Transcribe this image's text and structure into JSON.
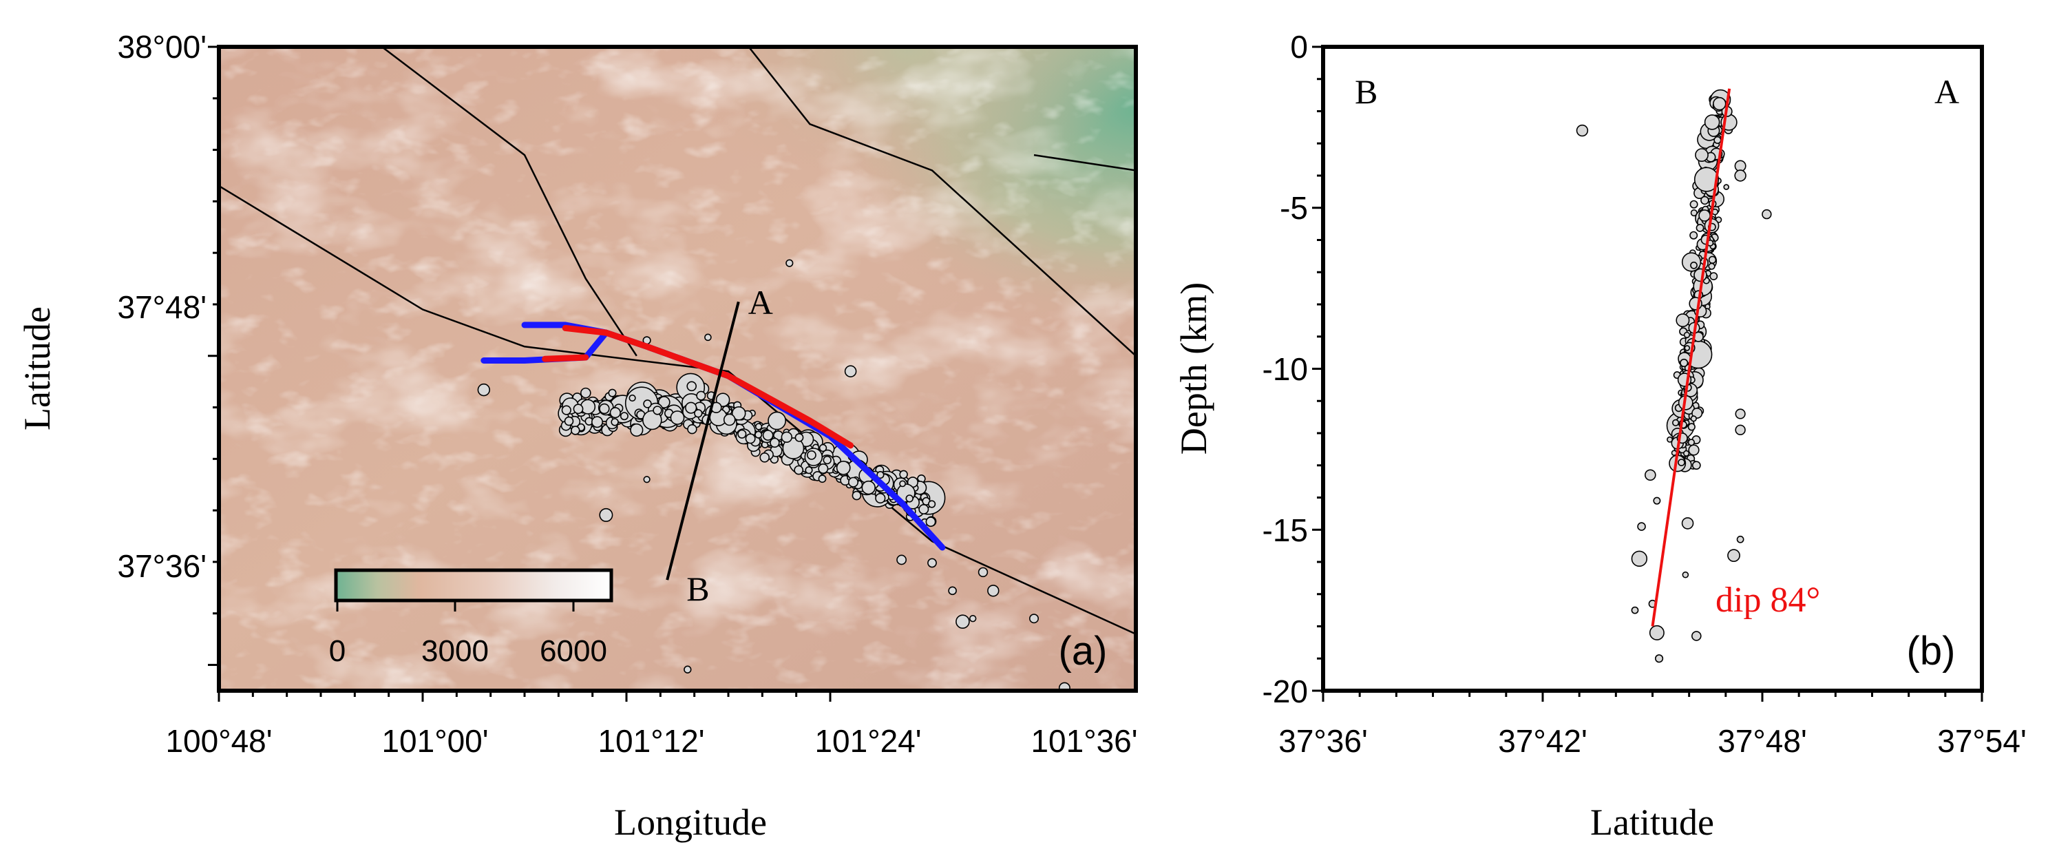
{
  "panel_a": {
    "label": "(a)",
    "xlabel": "Longitude",
    "ylabel": "Latitude",
    "x_ticks": [
      "100°48'",
      "101°00'",
      "101°12'",
      "101°24'",
      "101°36'"
    ],
    "y_ticks": [
      "38°00'",
      "37°48'",
      "37°36'"
    ],
    "profile_labels": {
      "a": "A",
      "b": "B"
    },
    "colorbar": {
      "ticks": [
        "0",
        "3000",
        "6000"
      ]
    },
    "colors": {
      "rupture_blue": "#1a1aff",
      "rupture_red": "#ee1111",
      "terrain_low": "#7fb89a",
      "terrain_mid": "#d8ab96",
      "terrain_high": "#ffffff"
    }
  },
  "panel_b": {
    "label": "(b)",
    "xlabel": "Latitude",
    "ylabel": "Depth (km)",
    "x_ticks": [
      "37°36'",
      "37°42'",
      "37°48'",
      "37°54'"
    ],
    "y_ticks": [
      "0",
      "-5",
      "-10",
      "-15",
      "-20"
    ],
    "corner_left": "B",
    "corner_right": "A",
    "dip_label": "dip 84°",
    "colors": {
      "fit_line": "#ee1111"
    }
  },
  "chart_data": [
    {
      "type": "scatter",
      "panel": "(a)",
      "title": "",
      "xlabel": "Longitude",
      "ylabel": "Latitude",
      "xlim_deg": [
        100.8,
        101.7
      ],
      "ylim_deg": [
        37.5833,
        38.0
      ],
      "grid": false,
      "faults": [
        {
          "points": [
            [
              100.8,
              37.91
            ],
            [
              101.0,
              37.83
            ],
            [
              101.1,
              37.806
            ],
            [
              101.3,
              37.79
            ],
            [
              101.5,
              37.68
            ],
            [
              101.7,
              37.62
            ]
          ]
        },
        {
          "points": [
            [
              100.96,
              38.0
            ],
            [
              101.1,
              37.93
            ],
            [
              101.16,
              37.85
            ],
            [
              101.21,
              37.8
            ]
          ]
        },
        {
          "points": [
            [
              101.32,
              38.0
            ],
            [
              101.38,
              37.95
            ],
            [
              101.5,
              37.92
            ],
            [
              101.6,
              37.86
            ],
            [
              101.7,
              37.8
            ]
          ]
        },
        {
          "points": [
            [
              101.6,
              37.93
            ],
            [
              101.7,
              37.92
            ]
          ]
        }
      ],
      "rupture_blue": [
        {
          "points": [
            [
              101.06,
              37.797
            ],
            [
              101.1,
              37.797
            ],
            [
              101.16,
              37.799
            ]
          ]
        },
        {
          "points": [
            [
              101.1,
              37.82
            ],
            [
              101.14,
              37.82
            ],
            [
              101.18,
              37.815
            ],
            [
              101.22,
              37.806
            ],
            [
              101.3,
              37.787
            ],
            [
              101.4,
              37.748
            ],
            [
              101.47,
              37.705
            ],
            [
              101.51,
              37.676
            ]
          ]
        },
        {
          "points": [
            [
              101.16,
              37.799
            ],
            [
              101.18,
              37.815
            ]
          ]
        }
      ],
      "rupture_red": [
        {
          "points": [
            [
              101.12,
              37.798
            ],
            [
              101.16,
              37.799
            ]
          ]
        },
        {
          "points": [
            [
              101.14,
              37.818
            ],
            [
              101.18,
              37.815
            ],
            [
              101.22,
              37.806
            ],
            [
              101.3,
              37.787
            ],
            [
              101.38,
              37.758
            ],
            [
              101.42,
              37.742
            ]
          ]
        }
      ],
      "profile": {
        "A": [
          101.31,
          37.835
        ],
        "B": [
          101.24,
          37.655
        ]
      },
      "colorbar_range_m": [
        0,
        7000
      ],
      "epicenter_cluster": {
        "lon_range": [
          101.14,
          101.5
        ],
        "lat_range": [
          37.7,
          37.79
        ],
        "count": 520
      },
      "outliers": [
        [
          101.22,
          37.81
        ],
        [
          101.28,
          37.812
        ],
        [
          101.36,
          37.86
        ],
        [
          101.21,
          37.752
        ],
        [
          101.22,
          37.72
        ],
        [
          101.18,
          37.697
        ],
        [
          101.25,
          37.76
        ],
        [
          101.5,
          37.666
        ],
        [
          101.52,
          37.648
        ],
        [
          101.55,
          37.66
        ],
        [
          101.56,
          37.648
        ],
        [
          101.6,
          37.63
        ],
        [
          101.47,
          37.668
        ],
        [
          101.53,
          37.628
        ],
        [
          101.54,
          37.63
        ],
        [
          101.26,
          37.597
        ],
        [
          101.63,
          37.585
        ],
        [
          101.06,
          37.778
        ],
        [
          101.16,
          37.776
        ],
        [
          101.42,
          37.79
        ]
      ]
    },
    {
      "type": "scatter",
      "panel": "(b)",
      "title": "",
      "xlabel": "Latitude",
      "ylabel": "Depth (km)",
      "xlim_deg": [
        37.6,
        37.9
      ],
      "ylim": [
        -20,
        0
      ],
      "grid": false,
      "fit_line": {
        "top": [
          37.785,
          -1.3
        ],
        "bottom": [
          37.75,
          -18.0
        ]
      },
      "dip_deg": 84,
      "hypocenter_cluster": {
        "lat_range": [
          37.755,
          37.785
        ],
        "depth_range": [
          -13,
          -1.5
        ],
        "count": 300
      },
      "outliers": [
        [
          37.718,
          -2.6
        ],
        [
          37.802,
          -5.2
        ],
        [
          37.79,
          -3.7
        ],
        [
          37.79,
          -4.0
        ],
        [
          37.79,
          -11.9
        ],
        [
          37.79,
          -11.4
        ],
        [
          37.745,
          -14.9
        ],
        [
          37.744,
          -15.9
        ],
        [
          37.787,
          -15.8
        ],
        [
          37.79,
          -15.3
        ],
        [
          37.742,
          -17.5
        ],
        [
          37.75,
          -17.3
        ],
        [
          37.752,
          -18.2
        ],
        [
          37.753,
          -19.0
        ],
        [
          37.77,
          -18.3
        ],
        [
          37.765,
          -16.4
        ],
        [
          37.766,
          -14.8
        ],
        [
          37.77,
          -13.0
        ],
        [
          37.749,
          -13.3
        ],
        [
          37.752,
          -14.1
        ]
      ]
    }
  ]
}
